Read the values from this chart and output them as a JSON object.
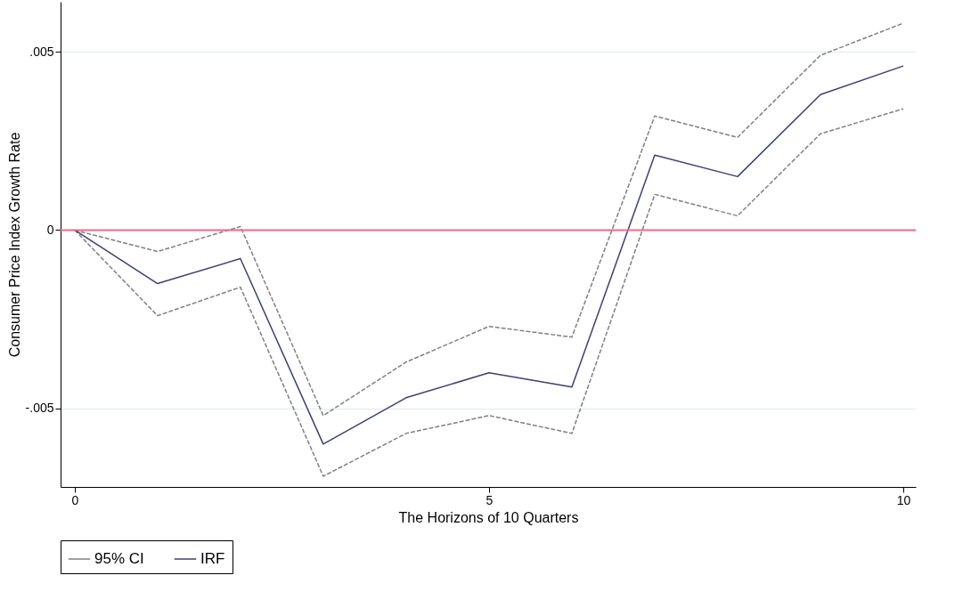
{
  "chart_data": {
    "type": "line",
    "xlabel": "The Horizons of 10 Quarters",
    "ylabel": "Consumer Price Index Growth Rate",
    "x": [
      0,
      1,
      2,
      3,
      4,
      5,
      6,
      7,
      8,
      9,
      10
    ],
    "series": [
      {
        "name": "95% CI",
        "color": "#808080",
        "line_style": "dashed",
        "values": [
          0,
          -0.0024,
          -0.0016,
          -0.0069,
          -0.0057,
          -0.0052,
          -0.0057,
          0.001,
          0.0004,
          0.0027,
          0.0034
        ]
      },
      {
        "color": "#808080",
        "line_style": "dashed",
        "values": [
          0,
          -0.0006,
          0.0001,
          -0.0052,
          -0.0037,
          -0.0027,
          -0.003,
          0.0032,
          0.0026,
          0.0049,
          0.0058
        ]
      },
      {
        "name": "IRF",
        "color": "#3c4170",
        "line_style": "solid",
        "values": [
          0,
          -0.0015,
          -0.0008,
          -0.006,
          -0.0047,
          -0.004,
          -0.0044,
          0.0021,
          0.0015,
          0.0038,
          0.0046
        ]
      }
    ],
    "xlim": [
      -0.17,
      10.15
    ],
    "ylim": [
      -0.0072,
      0.0064
    ],
    "xticks": [
      0,
      5,
      10
    ],
    "yticks": [
      {
        "value": -0.005,
        "label": "-.005"
      },
      {
        "value": 0,
        "label": "0"
      },
      {
        "value": 0.005,
        "label": ".005"
      }
    ],
    "ref_lines": [
      {
        "axis": "y",
        "value": 0,
        "color": "#f06a8a"
      }
    ],
    "grid": "y",
    "legend": "bottom"
  }
}
